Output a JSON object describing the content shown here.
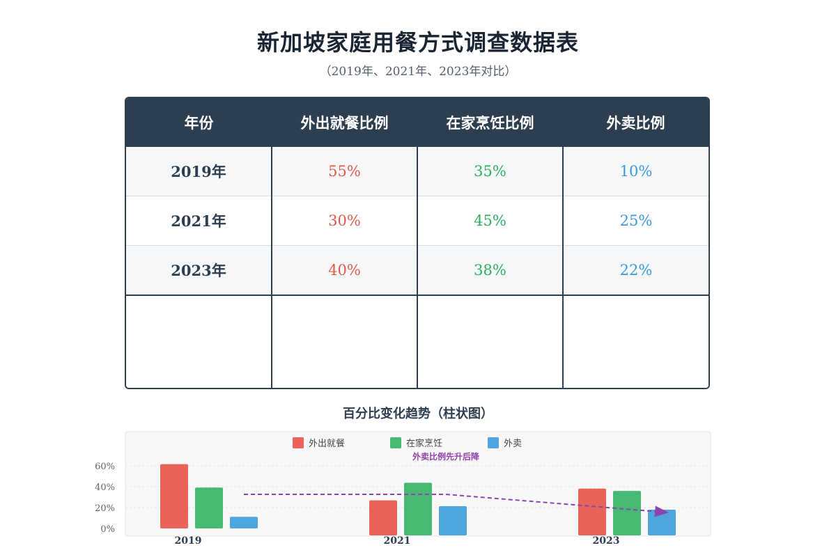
{
  "page": {
    "title": "新加坡家庭用餐方式调查数据表",
    "subtitle": "（2019年、2021年、2023年对比）"
  },
  "table": {
    "headers": [
      "年份",
      "外出就餐比例",
      "在家烹饪比例",
      "外卖比例"
    ],
    "rows": [
      {
        "year": "2019年",
        "dine_out": "55%",
        "home_cooking": "35%",
        "takeout": "10%"
      },
      {
        "year": "2021年",
        "dine_out": "30%",
        "home_cooking": "45%",
        "takeout": "25%"
      },
      {
        "year": "2023年",
        "dine_out": "40%",
        "home_cooking": "38%",
        "takeout": "22%"
      }
    ]
  },
  "chart": {
    "title": "百分比变化趋势（柱状图）"
  },
  "colors": {
    "dine_out": "#e8645a",
    "home_cooking": "#47b973",
    "takeout": "#4fa6df",
    "annotation": "#8e44ad",
    "header_bg": "#2c3e50"
  },
  "chart_data": {
    "type": "bar",
    "categories": [
      "2019",
      "2021",
      "2023"
    ],
    "series": [
      {
        "name": "外出就餐",
        "values": [
          55,
          30,
          40
        ]
      },
      {
        "name": "在家烹饪",
        "values": [
          35,
          45,
          38
        ]
      },
      {
        "name": "外卖",
        "values": [
          10,
          25,
          22
        ]
      }
    ],
    "yticks": [
      "0%",
      "20%",
      "40%",
      "60%"
    ],
    "legend_position": "top-center",
    "grid": true,
    "annotation": {
      "text": "外卖比例先升后降",
      "style": "dashed-arrow"
    }
  }
}
